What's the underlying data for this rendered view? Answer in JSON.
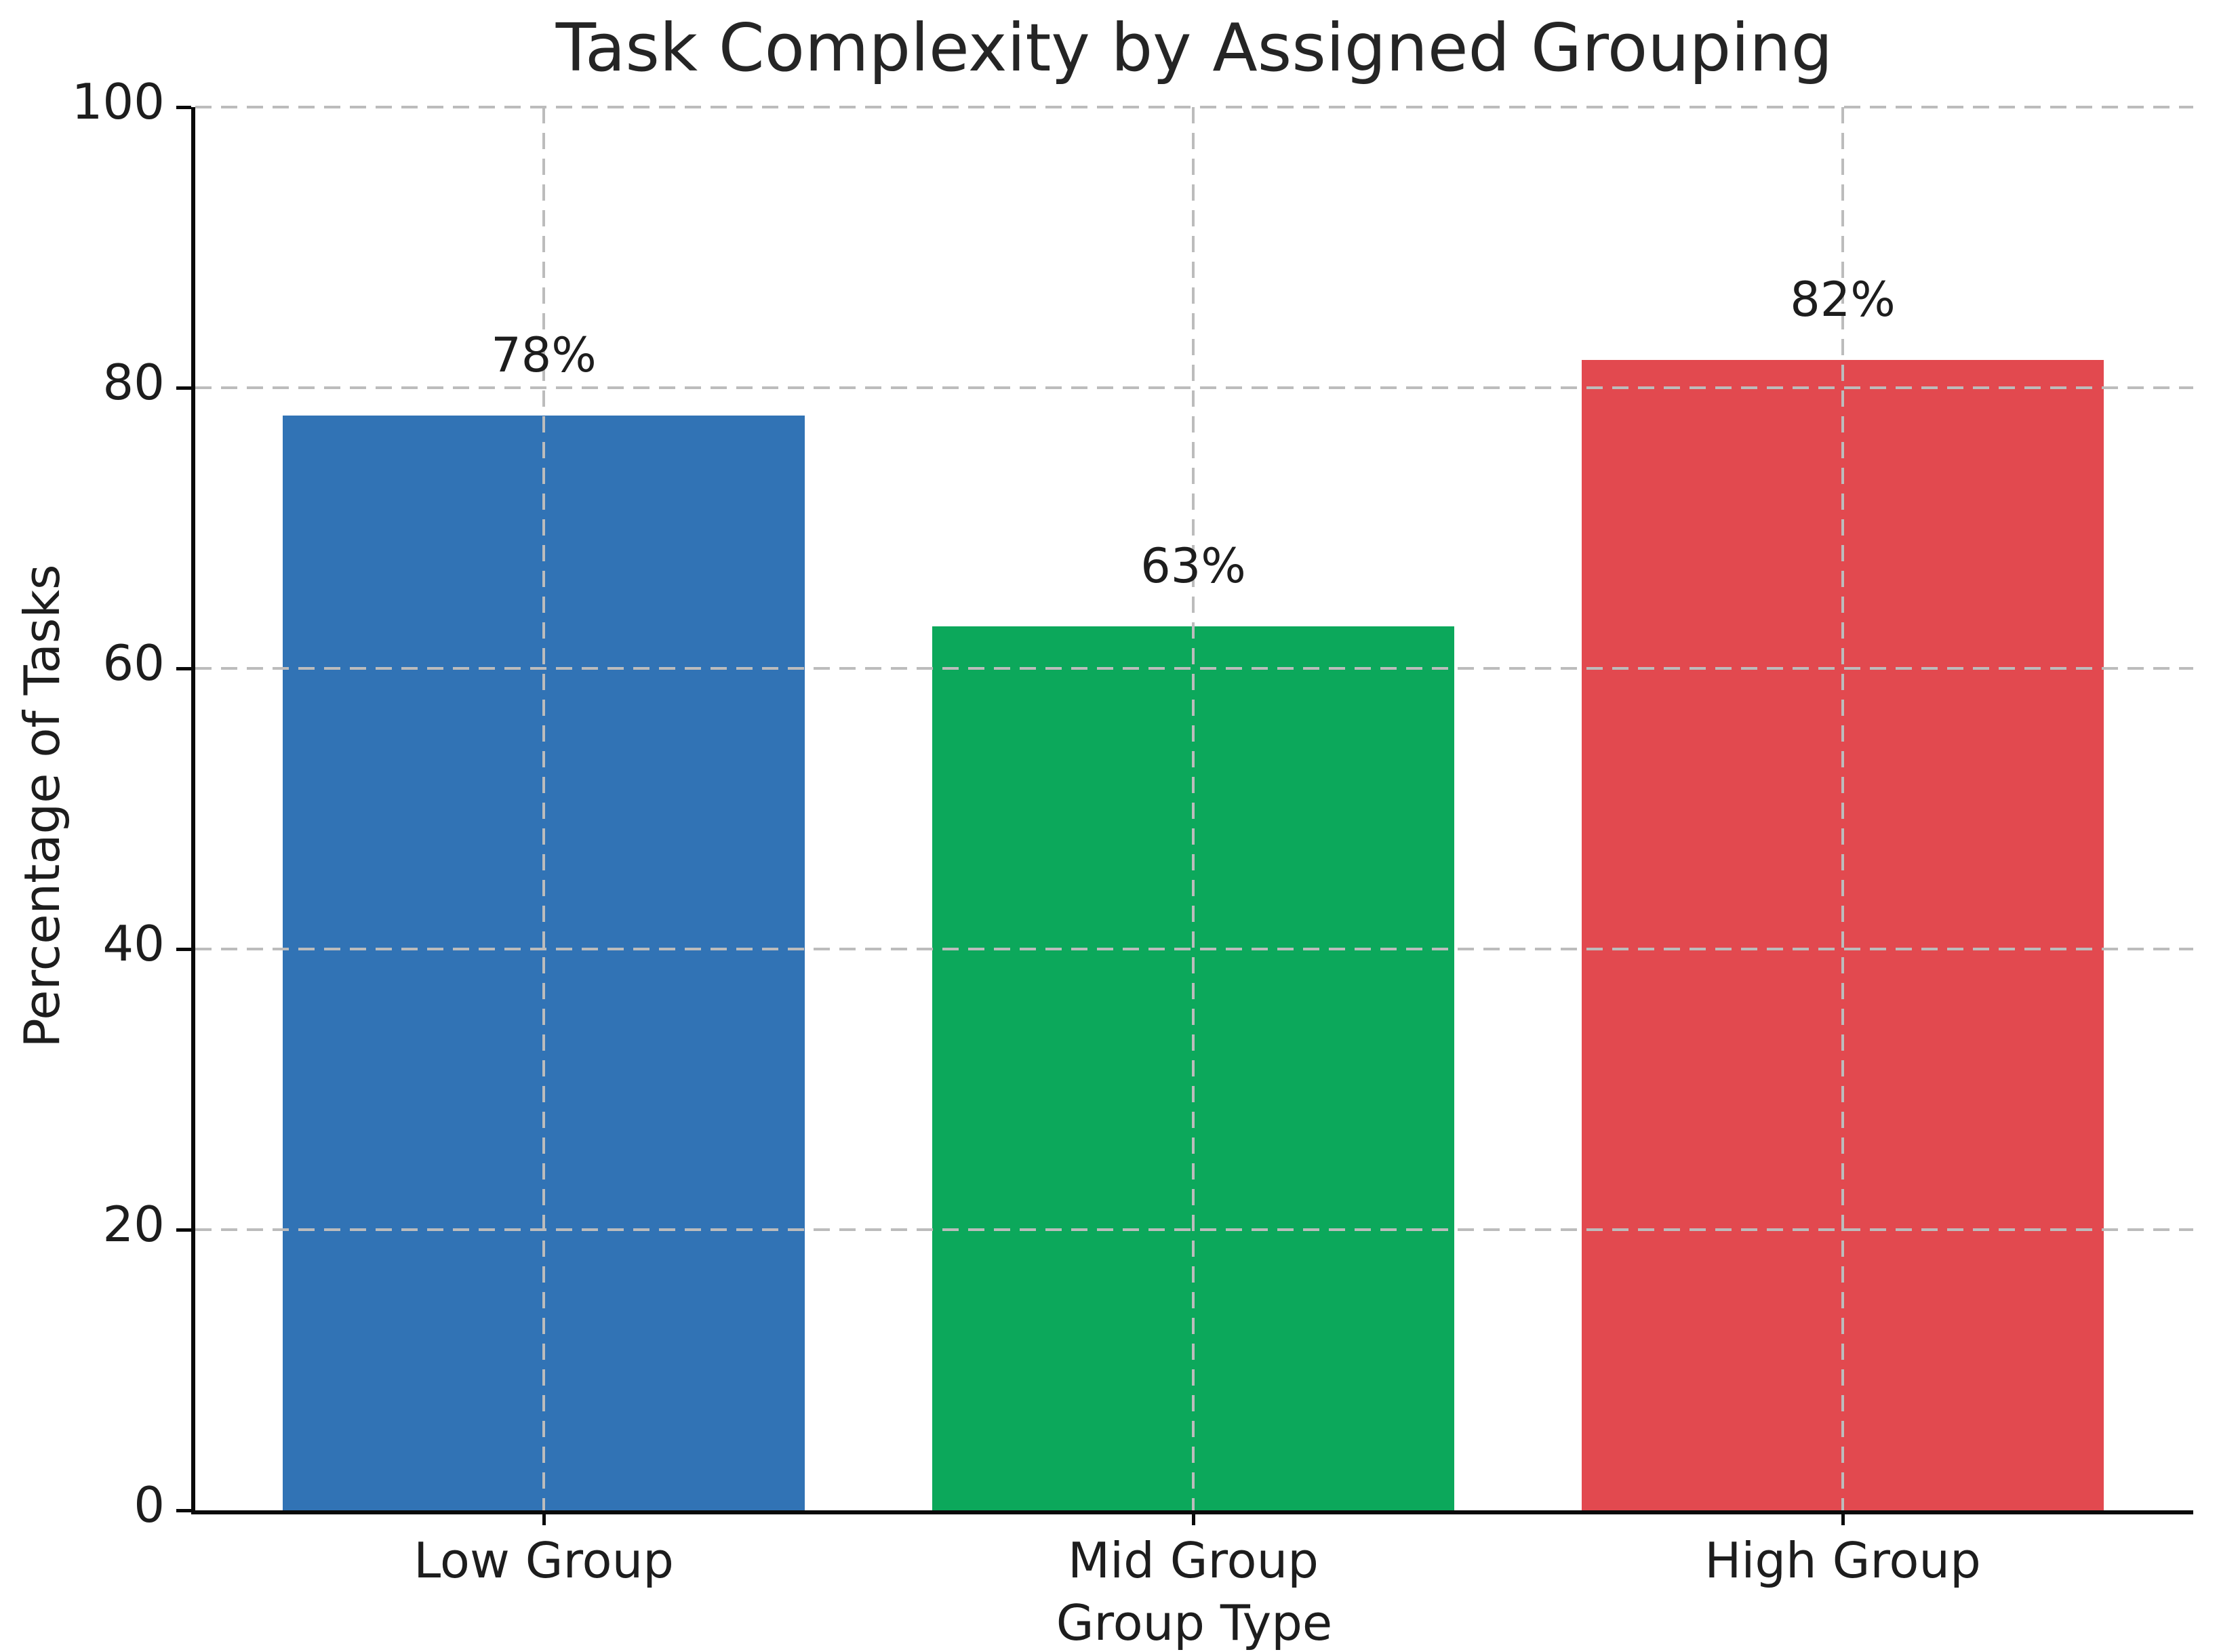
{
  "chart_data": {
    "type": "bar",
    "title": "Task Complexity by Assigned Grouping",
    "xlabel": "Group Type",
    "ylabel": "Percentage of Tasks",
    "categories": [
      "Low Group",
      "Mid Group",
      "High Group"
    ],
    "values": [
      78,
      63,
      82
    ],
    "value_labels": [
      "78%",
      "63%",
      "82%"
    ],
    "bar_colors": [
      "#3173B5",
      "#0CA85B",
      "#E2494F"
    ],
    "ylim": [
      0,
      100
    ],
    "yticks": [
      0,
      20,
      40,
      60,
      80,
      100
    ],
    "ytick_labels": [
      "0",
      "20",
      "40",
      "60",
      "80",
      "100"
    ],
    "grid": "dashed",
    "grid_axes": "both",
    "grid_color": "#bcbcbc",
    "grid_above_bars": true,
    "spines": "left and bottom only",
    "axis_color": "#0a0a0a",
    "text_color": "#1d1d1d",
    "legend": "none",
    "bar_width_fraction": 0.8
  }
}
